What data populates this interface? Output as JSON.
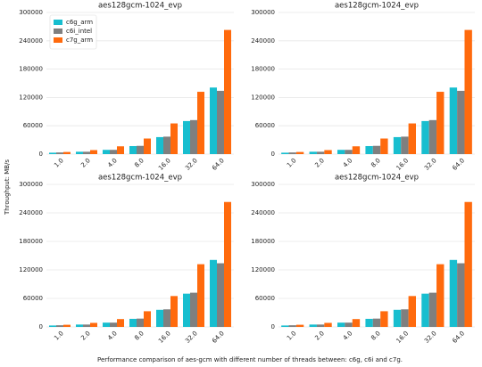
{
  "figure": {
    "ylabel": "Throughput: MB/s",
    "caption": "Performance comparison of aes-gcm with different number of threads between: c6g, c6i and c7g."
  },
  "chart_data": [
    {
      "type": "bar",
      "title": "aes128gcm-1024_evp",
      "categories": [
        "1.0",
        "2.0",
        "4.0",
        "8.0",
        "16.0",
        "32.0",
        "64.0"
      ],
      "series": [
        {
          "name": "c6g_arm",
          "color": "#17becf",
          "values": [
            3000,
            5000,
            9000,
            17000,
            36000,
            70000,
            141000
          ]
        },
        {
          "name": "c6i_intel",
          "color": "#7f7f7f",
          "values": [
            3500,
            5000,
            9000,
            17500,
            37000,
            72000,
            134000
          ]
        },
        {
          "name": "c7g_arm",
          "color": "#ff6a0d",
          "values": [
            4500,
            8500,
            16500,
            33000,
            65000,
            132000,
            263000
          ]
        }
      ],
      "ylim": [
        0,
        300000
      ],
      "yticks": [
        0,
        60000,
        120000,
        180000,
        240000,
        300000
      ],
      "grid": true,
      "legend": "upper left"
    },
    {
      "type": "bar",
      "title": "aes128gcm-1024_evp",
      "categories": [
        "1.0",
        "2.0",
        "4.0",
        "8.0",
        "16.0",
        "32.0",
        "64.0"
      ],
      "series": [
        {
          "color": "#17becf",
          "values": [
            3000,
            5000,
            9000,
            17000,
            36000,
            70000,
            141000
          ]
        },
        {
          "color": "#7f7f7f",
          "values": [
            3500,
            5000,
            9000,
            17500,
            37000,
            72000,
            134000
          ]
        },
        {
          "color": "#ff6a0d",
          "values": [
            4500,
            8500,
            16500,
            33000,
            65000,
            132000,
            263000
          ]
        }
      ],
      "ylim": [
        0,
        300000
      ],
      "yticks": [
        0,
        60000,
        120000,
        180000,
        240000,
        300000
      ],
      "grid": true
    },
    {
      "type": "bar",
      "title": "aes128gcm-1024_evp",
      "categories": [
        "1.0",
        "2.0",
        "4.0",
        "8.0",
        "16.0",
        "32.0",
        "64.0"
      ],
      "series": [
        {
          "color": "#17becf",
          "values": [
            3000,
            5000,
            9000,
            17000,
            36000,
            70000,
            141000
          ]
        },
        {
          "color": "#7f7f7f",
          "values": [
            3500,
            5000,
            9000,
            17500,
            37000,
            72000,
            134000
          ]
        },
        {
          "color": "#ff6a0d",
          "values": [
            4500,
            8500,
            16500,
            33000,
            65000,
            132000,
            263000
          ]
        }
      ],
      "ylim": [
        0,
        300000
      ],
      "yticks": [
        0,
        60000,
        120000,
        180000,
        240000,
        300000
      ],
      "grid": true
    },
    {
      "type": "bar",
      "title": "aes128gcm-1024_evp",
      "categories": [
        "1.0",
        "2.0",
        "4.0",
        "8.0",
        "16.0",
        "32.0",
        "64.0"
      ],
      "series": [
        {
          "color": "#17becf",
          "values": [
            3000,
            5000,
            9000,
            17000,
            36000,
            70000,
            141000
          ]
        },
        {
          "color": "#7f7f7f",
          "values": [
            3500,
            5000,
            9000,
            17500,
            37000,
            72000,
            134000
          ]
        },
        {
          "color": "#ff6a0d",
          "values": [
            4500,
            8500,
            16500,
            33000,
            65000,
            132000,
            263000
          ]
        }
      ],
      "ylim": [
        0,
        300000
      ],
      "yticks": [
        0,
        60000,
        120000,
        180000,
        240000,
        300000
      ],
      "grid": true
    }
  ]
}
